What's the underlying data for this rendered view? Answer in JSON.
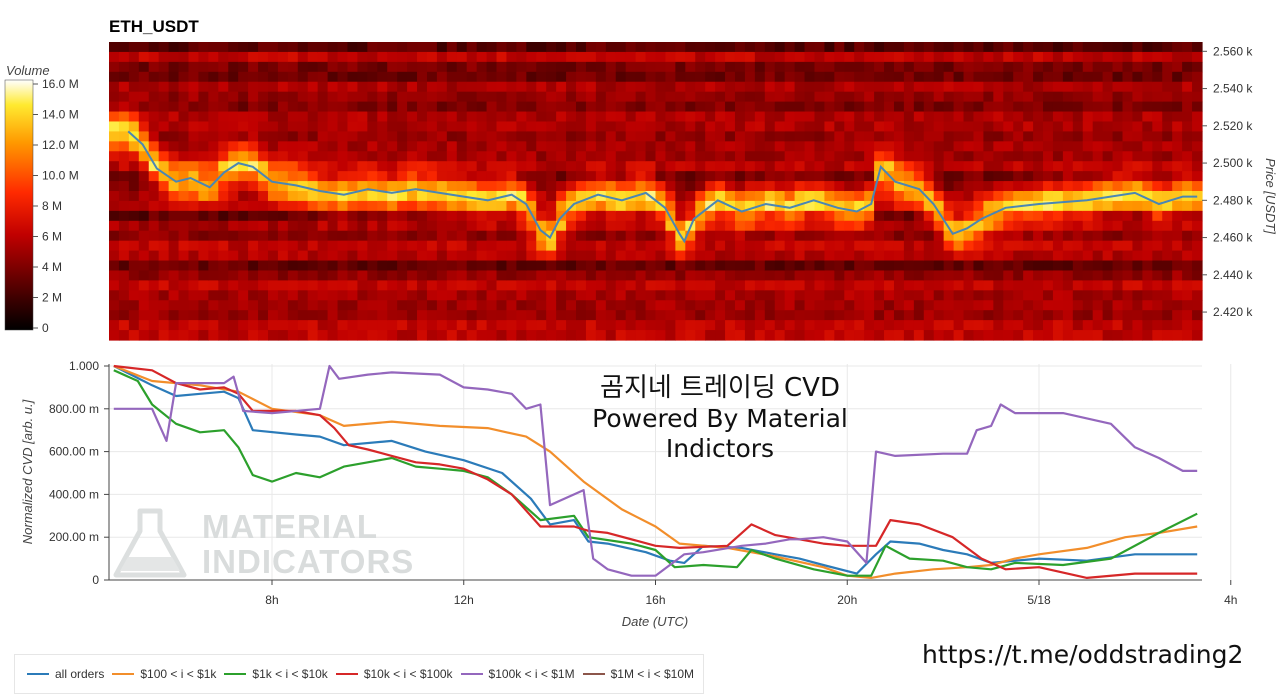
{
  "chart_data": [
    {
      "type": "heatmap",
      "title": "ETH_USDT",
      "ylabel": "Price [USDT]",
      "ylim": [
        2405,
        2565
      ],
      "y_ticks": [
        "2.560 k",
        "2.540 k",
        "2.520 k",
        "2.500 k",
        "2.480 k",
        "2.460 k",
        "2.440 k",
        "2.420 k"
      ],
      "y_tick_values": [
        2560,
        2540,
        2520,
        2500,
        2480,
        2460,
        2440,
        2420
      ],
      "colorbar": {
        "label": "Volume",
        "ticks": [
          "16.0 M",
          "14.0 M",
          "12.0 M",
          "10.0 M",
          "8 M",
          "6 M",
          "4 M",
          "2 M",
          "0"
        ],
        "range": [
          0,
          16000000
        ]
      },
      "price_line_color": "#4a86b4",
      "price": [
        [
          5.0,
          2517
        ],
        [
          5.3,
          2510
        ],
        [
          5.6,
          2497
        ],
        [
          6.0,
          2490
        ],
        [
          6.3,
          2492
        ],
        [
          6.7,
          2487
        ],
        [
          7.0,
          2495
        ],
        [
          7.3,
          2500
        ],
        [
          7.6,
          2498
        ],
        [
          8.0,
          2490
        ],
        [
          8.5,
          2488
        ],
        [
          9.0,
          2485
        ],
        [
          9.5,
          2483
        ],
        [
          10.0,
          2486
        ],
        [
          10.5,
          2484
        ],
        [
          11.0,
          2486
        ],
        [
          11.5,
          2484
        ],
        [
          12.0,
          2482
        ],
        [
          12.5,
          2480
        ],
        [
          13.0,
          2483
        ],
        [
          13.3,
          2478
        ],
        [
          13.6,
          2464
        ],
        [
          13.8,
          2460
        ],
        [
          14.0,
          2470
        ],
        [
          14.3,
          2478
        ],
        [
          14.8,
          2483
        ],
        [
          15.3,
          2480
        ],
        [
          15.8,
          2484
        ],
        [
          16.2,
          2476
        ],
        [
          16.5,
          2462
        ],
        [
          16.6,
          2458
        ],
        [
          16.8,
          2470
        ],
        [
          17.3,
          2480
        ],
        [
          17.8,
          2474
        ],
        [
          18.3,
          2478
        ],
        [
          18.8,
          2476
        ],
        [
          19.3,
          2480
        ],
        [
          19.8,
          2476
        ],
        [
          20.2,
          2474
        ],
        [
          20.5,
          2478
        ],
        [
          20.7,
          2498
        ],
        [
          21.0,
          2490
        ],
        [
          21.5,
          2486
        ],
        [
          21.8,
          2478
        ],
        [
          22.2,
          2462
        ],
        [
          22.5,
          2465
        ],
        [
          22.8,
          2470
        ],
        [
          23.3,
          2476
        ],
        [
          24.0,
          2478
        ],
        [
          25.0,
          2480
        ],
        [
          26.0,
          2484
        ],
        [
          26.5,
          2478
        ],
        [
          27.0,
          2482
        ],
        [
          27.3,
          2482
        ]
      ]
    },
    {
      "type": "line",
      "xlabel": "Date (UTC)",
      "ylabel": "Normalized CVD [arb. u.]",
      "ylim": [
        0,
        1.0
      ],
      "xlim": [
        4.6,
        27.4
      ],
      "y_ticks": [
        "1.000",
        "800.00 m",
        "600.00 m",
        "400.00 m",
        "200.00 m",
        "0"
      ],
      "y_tick_values": [
        1.0,
        0.8,
        0.6,
        0.4,
        0.2,
        0
      ],
      "x_ticks": [
        "8h",
        "12h",
        "16h",
        "20h",
        "5/18",
        "4h"
      ],
      "x_tick_values": [
        8,
        12,
        16,
        20,
        24,
        28
      ],
      "series": [
        {
          "name": "all orders",
          "color": "#2b7bb9",
          "points": [
            [
              4.7,
              1.0
            ],
            [
              5.5,
              0.91
            ],
            [
              6.0,
              0.86
            ],
            [
              6.5,
              0.87
            ],
            [
              7.0,
              0.88
            ],
            [
              7.3,
              0.85
            ],
            [
              7.6,
              0.7
            ],
            [
              8.5,
              0.68
            ],
            [
              9.0,
              0.67
            ],
            [
              9.5,
              0.63
            ],
            [
              10.5,
              0.65
            ],
            [
              11.2,
              0.6
            ],
            [
              12.0,
              0.56
            ],
            [
              12.8,
              0.5
            ],
            [
              13.4,
              0.38
            ],
            [
              13.8,
              0.26
            ],
            [
              14.3,
              0.28
            ],
            [
              14.6,
              0.18
            ],
            [
              15.0,
              0.17
            ],
            [
              15.8,
              0.13
            ],
            [
              16.3,
              0.09
            ],
            [
              16.6,
              0.08
            ],
            [
              17.0,
              0.16
            ],
            [
              17.8,
              0.15
            ],
            [
              18.5,
              0.12
            ],
            [
              19.0,
              0.1
            ],
            [
              19.5,
              0.07
            ],
            [
              20.2,
              0.03
            ],
            [
              20.6,
              0.12
            ],
            [
              20.9,
              0.18
            ],
            [
              21.5,
              0.17
            ],
            [
              22.0,
              0.14
            ],
            [
              22.5,
              0.12
            ],
            [
              23.0,
              0.08
            ],
            [
              24.0,
              0.1
            ],
            [
              25.0,
              0.09
            ],
            [
              26.0,
              0.12
            ],
            [
              27.3,
              0.12
            ]
          ]
        },
        {
          "name": "$100 < i < $1k",
          "color": "#f28e2b",
          "points": [
            [
              4.7,
              1.0
            ],
            [
              5.5,
              0.93
            ],
            [
              6.5,
              0.91
            ],
            [
              7.3,
              0.88
            ],
            [
              8.0,
              0.8
            ],
            [
              9.0,
              0.77
            ],
            [
              9.5,
              0.72
            ],
            [
              10.5,
              0.74
            ],
            [
              11.5,
              0.72
            ],
            [
              12.5,
              0.71
            ],
            [
              13.3,
              0.67
            ],
            [
              13.8,
              0.6
            ],
            [
              14.5,
              0.46
            ],
            [
              15.3,
              0.33
            ],
            [
              16.0,
              0.25
            ],
            [
              16.5,
              0.17
            ],
            [
              17.5,
              0.15
            ],
            [
              18.5,
              0.11
            ],
            [
              19.5,
              0.06
            ],
            [
              20.0,
              0.02
            ],
            [
              20.5,
              0.01
            ],
            [
              21.0,
              0.03
            ],
            [
              21.8,
              0.05
            ],
            [
              22.5,
              0.06
            ],
            [
              23.0,
              0.07
            ],
            [
              23.5,
              0.1
            ],
            [
              24.0,
              0.12
            ],
            [
              25.0,
              0.15
            ],
            [
              25.8,
              0.2
            ],
            [
              26.5,
              0.22
            ],
            [
              27.3,
              0.25
            ]
          ]
        },
        {
          "name": "$1k < i < $10k",
          "color": "#2ca02c",
          "points": [
            [
              4.7,
              0.98
            ],
            [
              5.2,
              0.93
            ],
            [
              5.5,
              0.82
            ],
            [
              6.0,
              0.73
            ],
            [
              6.5,
              0.69
            ],
            [
              7.0,
              0.7
            ],
            [
              7.3,
              0.62
            ],
            [
              7.6,
              0.49
            ],
            [
              8.0,
              0.46
            ],
            [
              8.5,
              0.5
            ],
            [
              9.0,
              0.48
            ],
            [
              9.5,
              0.53
            ],
            [
              10.0,
              0.55
            ],
            [
              10.5,
              0.57
            ],
            [
              11.0,
              0.53
            ],
            [
              11.5,
              0.52
            ],
            [
              12.0,
              0.51
            ],
            [
              12.5,
              0.48
            ],
            [
              13.0,
              0.4
            ],
            [
              13.6,
              0.28
            ],
            [
              14.3,
              0.3
            ],
            [
              14.6,
              0.2
            ],
            [
              15.5,
              0.17
            ],
            [
              16.0,
              0.14
            ],
            [
              16.4,
              0.06
            ],
            [
              17.0,
              0.07
            ],
            [
              17.7,
              0.06
            ],
            [
              18.0,
              0.14
            ],
            [
              18.5,
              0.1
            ],
            [
              19.3,
              0.05
            ],
            [
              20.0,
              0.02
            ],
            [
              20.5,
              0.02
            ],
            [
              20.8,
              0.16
            ],
            [
              21.3,
              0.1
            ],
            [
              22.0,
              0.09
            ],
            [
              22.5,
              0.06
            ],
            [
              23.0,
              0.05
            ],
            [
              23.5,
              0.08
            ],
            [
              24.5,
              0.07
            ],
            [
              25.5,
              0.1
            ],
            [
              26.5,
              0.22
            ],
            [
              27.3,
              0.31
            ]
          ]
        },
        {
          "name": "$10k < i < $100k",
          "color": "#d62728",
          "points": [
            [
              4.7,
              1.0
            ],
            [
              5.5,
              0.98
            ],
            [
              6.0,
              0.92
            ],
            [
              6.5,
              0.89
            ],
            [
              7.0,
              0.9
            ],
            [
              7.3,
              0.87
            ],
            [
              7.6,
              0.79
            ],
            [
              8.5,
              0.79
            ],
            [
              9.0,
              0.77
            ],
            [
              9.3,
              0.71
            ],
            [
              9.6,
              0.63
            ],
            [
              10.0,
              0.61
            ],
            [
              10.5,
              0.58
            ],
            [
              11.0,
              0.55
            ],
            [
              11.5,
              0.54
            ],
            [
              12.0,
              0.52
            ],
            [
              12.5,
              0.47
            ],
            [
              13.0,
              0.4
            ],
            [
              13.6,
              0.25
            ],
            [
              14.3,
              0.25
            ],
            [
              14.6,
              0.23
            ],
            [
              15.0,
              0.22
            ],
            [
              16.0,
              0.16
            ],
            [
              16.5,
              0.15
            ],
            [
              17.5,
              0.16
            ],
            [
              18.0,
              0.26
            ],
            [
              18.5,
              0.21
            ],
            [
              19.0,
              0.19
            ],
            [
              19.5,
              0.17
            ],
            [
              20.0,
              0.16
            ],
            [
              20.6,
              0.16
            ],
            [
              20.9,
              0.28
            ],
            [
              21.5,
              0.26
            ],
            [
              22.2,
              0.2
            ],
            [
              22.8,
              0.1
            ],
            [
              23.3,
              0.05
            ],
            [
              24.0,
              0.06
            ],
            [
              25.0,
              0.01
            ],
            [
              26.0,
              0.03
            ],
            [
              27.3,
              0.03
            ]
          ]
        },
        {
          "name": "$100k < i < $1M",
          "color": "#9467bd",
          "points": [
            [
              4.7,
              0.8
            ],
            [
              5.5,
              0.8
            ],
            [
              5.8,
              0.65
            ],
            [
              6.0,
              0.92
            ],
            [
              7.0,
              0.92
            ],
            [
              7.2,
              0.95
            ],
            [
              7.4,
              0.79
            ],
            [
              8.0,
              0.78
            ],
            [
              9.0,
              0.8
            ],
            [
              9.2,
              1.0
            ],
            [
              9.4,
              0.94
            ],
            [
              10.0,
              0.96
            ],
            [
              10.5,
              0.97
            ],
            [
              11.5,
              0.96
            ],
            [
              12.0,
              0.9
            ],
            [
              12.5,
              0.89
            ],
            [
              13.0,
              0.87
            ],
            [
              13.3,
              0.8
            ],
            [
              13.6,
              0.82
            ],
            [
              13.8,
              0.35
            ],
            [
              14.5,
              0.42
            ],
            [
              14.7,
              0.1
            ],
            [
              15.0,
              0.05
            ],
            [
              15.5,
              0.02
            ],
            [
              16.0,
              0.02
            ],
            [
              16.3,
              0.07
            ],
            [
              16.6,
              0.12
            ],
            [
              17.0,
              0.13
            ],
            [
              17.8,
              0.16
            ],
            [
              18.3,
              0.17
            ],
            [
              18.8,
              0.19
            ],
            [
              19.0,
              0.19
            ],
            [
              19.5,
              0.2
            ],
            [
              20.0,
              0.18
            ],
            [
              20.4,
              0.08
            ],
            [
              20.6,
              0.6
            ],
            [
              21.0,
              0.58
            ],
            [
              22.0,
              0.59
            ],
            [
              22.5,
              0.59
            ],
            [
              22.7,
              0.7
            ],
            [
              23.0,
              0.72
            ],
            [
              23.2,
              0.82
            ],
            [
              23.5,
              0.78
            ],
            [
              24.5,
              0.78
            ],
            [
              25.5,
              0.73
            ],
            [
              26.0,
              0.62
            ],
            [
              26.5,
              0.57
            ],
            [
              27.0,
              0.51
            ],
            [
              27.3,
              0.51
            ]
          ]
        },
        {
          "name": "$1M < i < $10M",
          "color": "#8c564b",
          "points": []
        }
      ]
    }
  ],
  "watermark": {
    "line1": "MATERIAL",
    "line2": "INDICATORS"
  },
  "overlay": {
    "line1": "곰지네 트레이딩 CVD",
    "line2": "Powered By Material Indictors"
  },
  "link": "https://t.me/oddstrading2"
}
